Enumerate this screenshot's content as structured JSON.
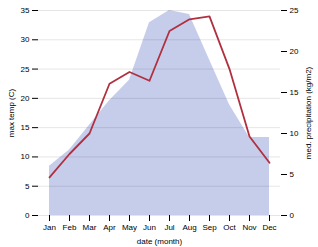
{
  "chart_data": {
    "type": "line",
    "xlabel": "date (month)",
    "ylabel": "max temp (C)",
    "y2label": "med. precipitation (kg/m2)",
    "categories": [
      "Jan",
      "Feb",
      "Mar",
      "Apr",
      "May",
      "Jun",
      "Jul",
      "Aug",
      "Sep",
      "Oct",
      "Nov",
      "Dec"
    ],
    "series": [
      {
        "type": "area",
        "axis": "y2",
        "color": "#bcc4e8",
        "values": [
          6.0,
          8.0,
          11.0,
          14.0,
          16.5,
          23.5,
          25.0,
          24.5,
          19.0,
          13.5,
          9.5,
          9.5
        ]
      },
      {
        "type": "line",
        "color": "#b03040",
        "values": [
          6.5,
          10.5,
          14.0,
          22.5,
          24.5,
          23.0,
          31.5,
          33.5,
          34.0,
          25.0,
          13.5,
          9.0
        ]
      }
    ],
    "ylim": [
      0,
      35
    ],
    "yticks": [
      0,
      5,
      10,
      15,
      20,
      25,
      30,
      35
    ],
    "y2lim": [
      0,
      25
    ],
    "y2ticks": [
      0,
      5,
      10,
      15,
      20,
      25
    ],
    "grid": true
  }
}
